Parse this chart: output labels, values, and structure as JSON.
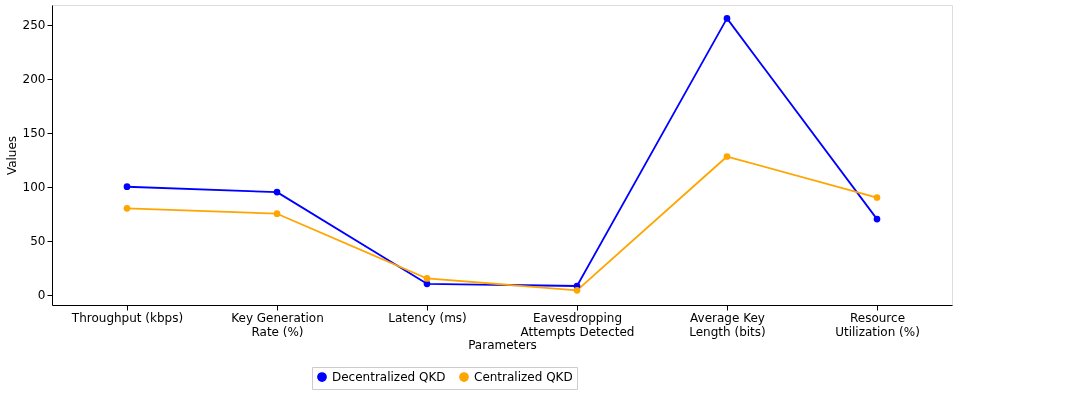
{
  "chart_data": {
    "type": "line",
    "xlabel": "Parameters",
    "ylabel": "Values",
    "categories": [
      "Throughput (kbps)",
      "Key Generation Rate (%)",
      "Latency (ms)",
      "Eavesdropping Attempts Detected",
      "Average Key Length (bits)",
      "Resource Utilization (%)"
    ],
    "series": [
      {
        "name": "Decentralized QKD",
        "color": "#0000ff",
        "values": [
          100,
          95,
          10,
          8,
          256,
          70
        ]
      },
      {
        "name": "Centralized QKD",
        "color": "#ffa500",
        "values": [
          80,
          75,
          15,
          4,
          128,
          90
        ]
      }
    ],
    "ylim": [
      -9.6,
      268.4
    ],
    "yticks": [
      0,
      50,
      100,
      150,
      200,
      250
    ],
    "grid": false,
    "legend": "bottom",
    "marker": "circle",
    "line_style": "solid"
  }
}
